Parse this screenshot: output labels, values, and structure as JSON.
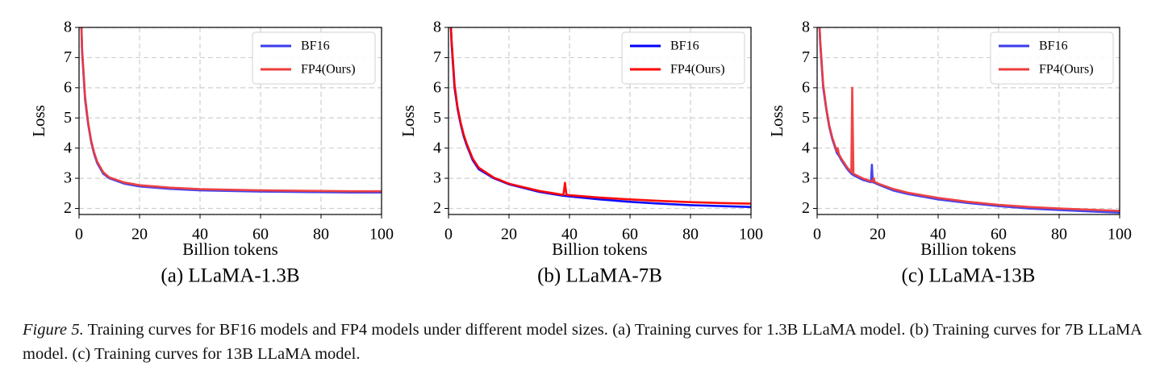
{
  "chart_data": [
    {
      "type": "line",
      "title": "(a) LLaMA-1.3B",
      "xlabel": "Billion tokens",
      "ylabel": "Loss",
      "x": [
        0.8,
        1,
        2,
        3,
        4,
        5,
        6,
        8,
        10,
        15,
        20,
        30,
        40,
        50,
        60,
        70,
        80,
        90,
        100
      ],
      "series": [
        {
          "name": "BF16",
          "color": "#3b3bee",
          "values": [
            8,
            7.2,
            5.6,
            4.8,
            4.2,
            3.8,
            3.5,
            3.15,
            3.0,
            2.82,
            2.73,
            2.65,
            2.6,
            2.58,
            2.56,
            2.55,
            2.54,
            2.53,
            2.53
          ]
        },
        {
          "name": "FP4(Ours)",
          "color": "#ee3b3b",
          "values": [
            8,
            7.3,
            5.7,
            4.85,
            4.25,
            3.85,
            3.55,
            3.2,
            3.03,
            2.86,
            2.77,
            2.69,
            2.64,
            2.62,
            2.6,
            2.59,
            2.58,
            2.57,
            2.57
          ]
        }
      ],
      "xlim": [
        0,
        100
      ],
      "xticks": [
        0,
        20,
        40,
        60,
        80,
        100
      ],
      "ylim": [
        1.8,
        8
      ],
      "yticks": [
        2,
        3,
        4,
        5,
        6,
        7,
        8
      ],
      "grid": true,
      "legend": "upper right"
    },
    {
      "type": "line",
      "title": "(b) LLaMA-7B",
      "xlabel": "Billion tokens",
      "ylabel": "Loss",
      "x": [
        0.8,
        1,
        2,
        3,
        4,
        5,
        6,
        8,
        10,
        15,
        20,
        30,
        38,
        38.5,
        39,
        40,
        50,
        60,
        70,
        80,
        90,
        100
      ],
      "series": [
        {
          "name": "BF16",
          "color": "#0000ff",
          "values": [
            8,
            7.5,
            6,
            5.3,
            4.8,
            4.4,
            4.1,
            3.6,
            3.3,
            3.0,
            2.8,
            2.55,
            2.42,
            2.42,
            2.41,
            2.4,
            2.3,
            2.22,
            2.16,
            2.11,
            2.08,
            2.05
          ]
        },
        {
          "name": "FP4(Ours)",
          "color": "#ff0000",
          "values": [
            8,
            7.6,
            6.1,
            5.35,
            4.85,
            4.45,
            4.15,
            3.65,
            3.35,
            3.02,
            2.82,
            2.58,
            2.45,
            2.85,
            2.45,
            2.44,
            2.36,
            2.3,
            2.25,
            2.21,
            2.18,
            2.16
          ]
        }
      ],
      "xlim": [
        0,
        100
      ],
      "xticks": [
        0,
        20,
        40,
        60,
        80,
        100
      ],
      "ylim": [
        1.8,
        8
      ],
      "yticks": [
        2,
        3,
        4,
        5,
        6,
        7,
        8
      ],
      "grid": true,
      "legend": "upper right"
    },
    {
      "type": "line",
      "title": "(c) LLaMA-13B",
      "xlabel": "Billion tokens",
      "ylabel": "Loss",
      "x": [
        0.8,
        1,
        2,
        3,
        4,
        5,
        6,
        6.5,
        6.8,
        7.2,
        8,
        10,
        11.3,
        11.6,
        12,
        15,
        17.8,
        18.1,
        18.4,
        18.7,
        19,
        20,
        25,
        30,
        40,
        50,
        60,
        70,
        80,
        90,
        100
      ],
      "series": [
        {
          "name": "BF16",
          "color": "#3b3bee",
          "values": [
            8,
            7.5,
            6.0,
            5.3,
            4.7,
            4.3,
            4.0,
            3.85,
            3.8,
            3.75,
            3.6,
            3.3,
            3.15,
            3.13,
            3.1,
            2.95,
            2.87,
            3.45,
            2.87,
            2.86,
            2.85,
            2.8,
            2.6,
            2.48,
            2.3,
            2.18,
            2.08,
            2.0,
            1.95,
            1.9,
            1.86
          ]
        },
        {
          "name": "FP4(Ours)",
          "color": "#ee3b3b",
          "values": [
            8,
            7.6,
            6.1,
            5.35,
            4.75,
            4.35,
            4.05,
            3.9,
            4.0,
            3.8,
            3.65,
            3.35,
            3.2,
            6.0,
            3.15,
            3.0,
            2.9,
            2.9,
            2.9,
            3.0,
            2.88,
            2.83,
            2.65,
            2.52,
            2.35,
            2.22,
            2.12,
            2.05,
            2.0,
            1.96,
            1.92
          ]
        }
      ],
      "xlim": [
        0,
        100
      ],
      "xticks": [
        0,
        20,
        40,
        60,
        80,
        100
      ],
      "ylim": [
        1.8,
        8
      ],
      "yticks": [
        2,
        3,
        4,
        5,
        6,
        7,
        8
      ],
      "grid": true,
      "legend": "upper right"
    }
  ],
  "caption": {
    "label": "Figure 5.",
    "text": "Training curves for BF16 models and FP4 models under different model sizes. (a) Training curves for 1.3B LLaMA model. (b) Training curves for 7B LLaMA model. (c) Training curves for 13B LLaMA model."
  }
}
